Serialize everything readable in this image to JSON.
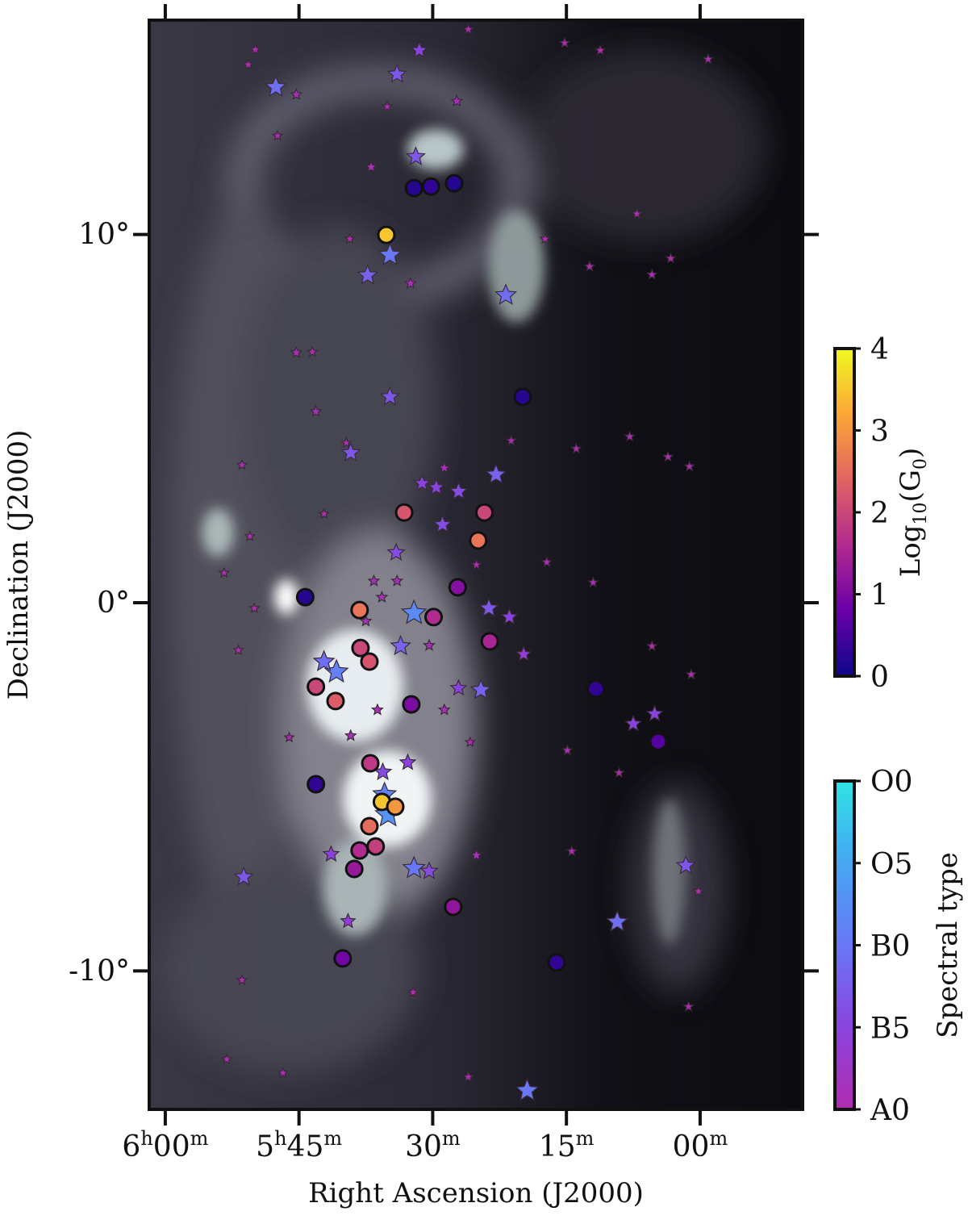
{
  "chart_data": {
    "type": "scatter",
    "xlabel": "Right Ascension (J2000)",
    "ylabel": "Declination (J2000)",
    "xlim": [
      361.8,
      288.5
    ],
    "ylim": [
      -13.76,
      15.82
    ],
    "xticks": [
      {
        "value": 360,
        "label": "6h00m"
      },
      {
        "value": 345,
        "label": "5h45m"
      },
      {
        "value": 330,
        "label": "30m"
      },
      {
        "value": 315,
        "label": "15m"
      },
      {
        "value": 300,
        "label": "00m"
      }
    ],
    "yticks": [
      {
        "value": 10,
        "label": "10°"
      },
      {
        "value": 0,
        "label": "0°"
      },
      {
        "value": -10,
        "label": "-10°"
      }
    ],
    "series": [
      {
        "marker": "circle",
        "colorbar": 0,
        "x": [
          332.1,
          330.2,
          327.6,
          335.2,
          319.9,
          333.2,
          324.2,
          324.9,
          327.2,
          344.3,
          338.2,
          329.9,
          323.6,
          338.1,
          337.1,
          343.1,
          340.9,
          332.4,
          311.7,
          304.7,
          337.0,
          343.1,
          335.7,
          334.2,
          337.1,
          336.4,
          338.2,
          338.8,
          327.7,
          340.1,
          316.1
        ],
        "y": [
          11.26,
          11.3,
          11.39,
          9.99,
          5.59,
          2.45,
          2.45,
          1.69,
          0.42,
          0.15,
          -0.2,
          -0.39,
          -1.05,
          -1.23,
          -1.6,
          -2.28,
          -2.67,
          -2.76,
          -2.34,
          -3.77,
          -4.36,
          -4.93,
          -5.41,
          -5.54,
          -6.07,
          -6.62,
          -6.73,
          -7.23,
          -8.26,
          -9.66,
          -9.77
        ],
        "c": [
          0.2,
          0.3,
          0.2,
          3.5,
          0.2,
          2.2,
          2.0,
          2.6,
          1.1,
          0.2,
          2.6,
          1.6,
          1.5,
          2.0,
          2.2,
          2.0,
          2.3,
          1.0,
          0.3,
          0.6,
          1.8,
          0.3,
          3.5,
          3.0,
          2.5,
          1.9,
          1.6,
          1.3,
          1.2,
          0.9,
          0.3
        ]
      },
      {
        "marker": "star",
        "colorbar": 1,
        "x": [
          347.6,
          334.0,
          331.5,
          321.8,
          337.3,
          334.8,
          331.9,
          334.8,
          339.2,
          322.9,
          327.1,
          329.6,
          331.2,
          334.1,
          328.9,
          323.7,
          332.1,
          333.6,
          340.8,
          342.2,
          324.6,
          327.1,
          307.5,
          305.1,
          335.4,
          335.0,
          332.1,
          330.4,
          341.4,
          351.2,
          319.4,
          309.3,
          301.6,
          319.8,
          321.4,
          339.5,
          335.6,
          332.8,
          350.7,
          345.3,
          347.4,
          349.9,
          326.0,
          315.2,
          311.2,
          299.1,
          327.3,
          335.1,
          336.9,
          339.3,
          317.4,
          307.1,
          303.3,
          305.4,
          312.4,
          332.5,
          345.3,
          343.5,
          343.1,
          339.7,
          351.4,
          321.2,
          313.9,
          307.9,
          303.6,
          301.2,
          342.2,
          350.5,
          353.4,
          350.0,
          351.8,
          317.2,
          312.0,
          305.4,
          301.0,
          314.9,
          309.1,
          314.4,
          300.2,
          301.3,
          353.1,
          346.8,
          326.0,
          351.4,
          332.2,
          325.1,
          325.8,
          336.2,
          339.2,
          346.1,
          328.7,
          330.4,
          337.5,
          335.7,
          334.0,
          336.6,
          325.1,
          328.7
        ],
        "y": [
          14.0,
          14.35,
          15.0,
          8.35,
          8.89,
          9.44,
          12.11,
          5.59,
          4.07,
          3.48,
          3.02,
          3.13,
          3.24,
          1.36,
          2.12,
          -0.15,
          -0.28,
          -1.18,
          -1.88,
          -1.6,
          -2.37,
          -2.32,
          -3.29,
          -3.02,
          -5.21,
          -5.76,
          -7.21,
          -7.29,
          -6.83,
          -7.45,
          -13.25,
          -8.67,
          -7.14,
          -1.4,
          -0.39,
          -8.65,
          -4.6,
          -4.34,
          14.61,
          13.8,
          12.68,
          15.02,
          15.57,
          15.2,
          15.0,
          14.76,
          13.62,
          13.47,
          11.83,
          9.88,
          9.88,
          10.56,
          9.35,
          8.91,
          9.13,
          8.67,
          6.79,
          6.81,
          5.19,
          4.34,
          3.74,
          4.4,
          4.18,
          4.51,
          3.96,
          3.7,
          2.41,
          1.8,
          0.81,
          -0.15,
          -1.29,
          1.1,
          0.55,
          -1.18,
          -1.95,
          -4.01,
          -4.62,
          -6.75,
          -7.84,
          -10.97,
          -12.4,
          -12.77,
          -12.88,
          -10.25,
          -10.58,
          -6.86,
          -3.79,
          -2.91,
          -3.61,
          -3.66,
          -2.91,
          -1.16,
          -0.5,
          0.15,
          0.59,
          0.59,
          1.03,
          3.66
        ],
        "c": [
          11,
          13,
          15,
          11,
          12,
          10,
          13,
          13,
          13,
          12,
          14,
          15,
          15,
          14,
          14,
          13,
          8,
          12,
          9,
          11,
          12,
          15,
          15,
          15,
          9,
          7,
          10,
          14,
          15,
          13,
          10,
          11,
          13,
          16,
          15,
          16,
          14,
          15,
          20,
          19,
          20,
          20,
          20,
          20,
          20,
          20,
          19,
          20,
          19,
          20,
          20,
          20,
          20,
          20,
          20,
          19,
          19,
          20,
          19,
          20,
          20,
          20,
          20,
          20,
          20,
          20,
          20,
          20,
          20,
          20,
          20,
          20,
          20,
          20,
          20,
          20,
          20,
          20,
          20,
          20,
          20,
          20,
          20,
          20,
          20,
          19,
          20,
          19,
          19,
          20,
          19,
          19,
          19,
          19,
          19,
          19,
          20,
          19
        ]
      }
    ],
    "colorbars": [
      {
        "label": "Log10(G0)",
        "cmap": "plasma",
        "lim": [
          0,
          4
        ],
        "ticks": [
          0,
          1,
          2,
          3,
          4
        ]
      },
      {
        "label": "Spectral type",
        "cmap": "spectral",
        "lim": [
          20,
          0
        ],
        "ticks": [
          {
            "value": 0,
            "label": "O0"
          },
          {
            "value": 5,
            "label": "O5"
          },
          {
            "value": 10,
            "label": "B0"
          },
          {
            "value": 15,
            "label": "B5"
          },
          {
            "value": 20,
            "label": "A0"
          }
        ]
      }
    ]
  }
}
